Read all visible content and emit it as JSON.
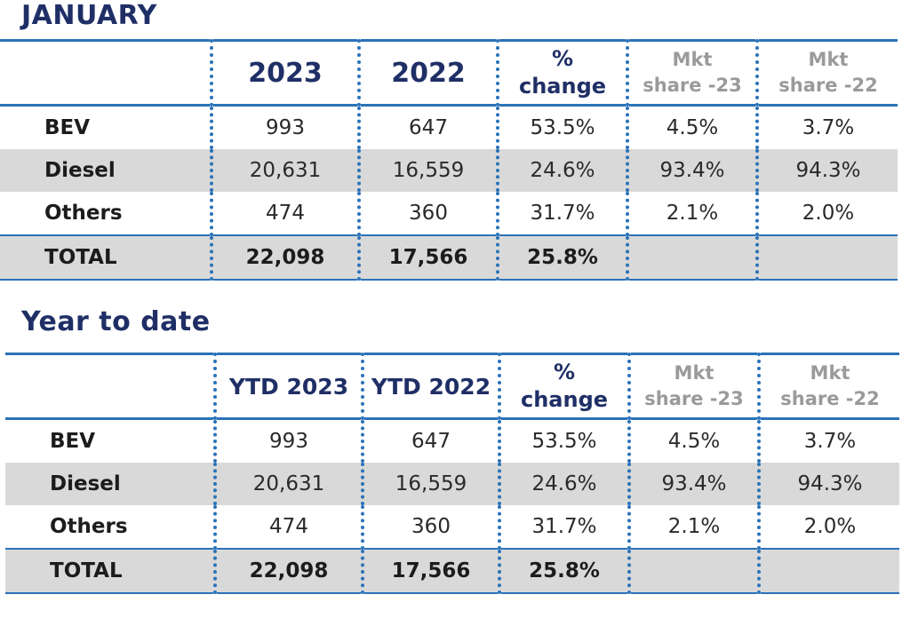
{
  "tables": [
    {
      "title": "JANUARY",
      "headers": {
        "col1": "2023",
        "col2": "2022",
        "pct_line1": "%",
        "pct_line2": "change",
        "mkt23_line1": "Mkt",
        "mkt23_line2": "share -23",
        "mkt22_line1": "Mkt",
        "mkt22_line2": "share -22"
      },
      "rows": [
        {
          "label": "BEV",
          "v2023": "993",
          "v2022": "647",
          "change": "53.5%",
          "share23": "4.5%",
          "share22": "3.7%"
        },
        {
          "label": "Diesel",
          "v2023": "20,631",
          "v2022": "16,559",
          "change": "24.6%",
          "share23": "93.4%",
          "share22": "94.3%"
        },
        {
          "label": "Others",
          "v2023": "474",
          "v2022": "360",
          "change": "31.7%",
          "share23": "2.1%",
          "share22": "2.0%"
        },
        {
          "label": "TOTAL",
          "v2023": "22,098",
          "v2022": "17,566",
          "change": "25.8%",
          "share23": "",
          "share22": ""
        }
      ]
    },
    {
      "title": "Year to date",
      "headers": {
        "col1": "YTD 2023",
        "col2": "YTD 2022",
        "pct_line1": "%",
        "pct_line2": "change",
        "mkt23_line1": "Mkt",
        "mkt23_line2": "share -23",
        "mkt22_line1": "Mkt",
        "mkt22_line2": "share -22"
      },
      "rows": [
        {
          "label": "BEV",
          "v2023": "993",
          "v2022": "647",
          "change": "53.5%",
          "share23": "4.5%",
          "share22": "3.7%"
        },
        {
          "label": "Diesel",
          "v2023": "20,631",
          "v2022": "16,559",
          "change": "24.6%",
          "share23": "93.4%",
          "share22": "94.3%"
        },
        {
          "label": "Others",
          "v2023": "474",
          "v2022": "360",
          "change": "31.7%",
          "share23": "2.1%",
          "share22": "2.0%"
        },
        {
          "label": "TOTAL",
          "v2023": "22,098",
          "v2022": "17,566",
          "change": "25.8%",
          "share23": "",
          "share22": ""
        }
      ]
    }
  ],
  "colors": {
    "title": "#1f2f66",
    "rule": "#2a72b8",
    "shade": "#d9d9d9",
    "muted_header": "#9a9a9a"
  }
}
